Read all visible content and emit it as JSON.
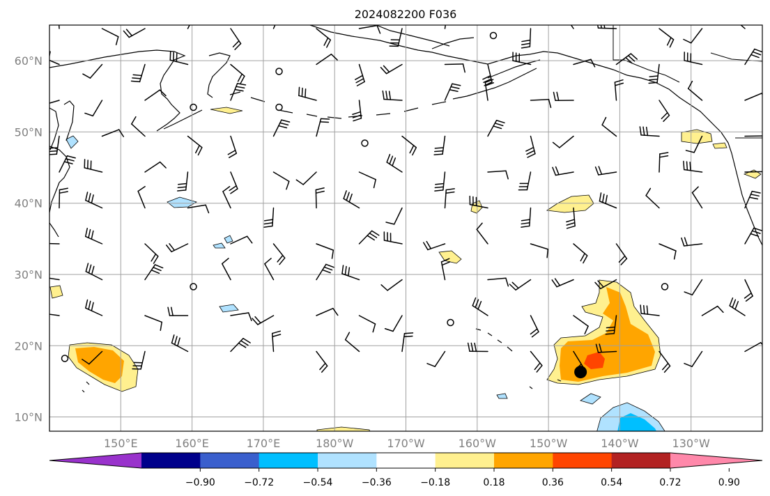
{
  "title": "2024082200 F036",
  "map": {
    "projection": "PlateCarree",
    "lon_range": [
      140,
      240
    ],
    "lat_range": [
      8,
      65
    ],
    "lat_ticks": [
      {
        "value": 10,
        "label": "10°N"
      },
      {
        "value": 20,
        "label": "20°N"
      },
      {
        "value": 30,
        "label": "30°N"
      },
      {
        "value": 40,
        "label": "40°N"
      },
      {
        "value": 50,
        "label": "50°N"
      },
      {
        "value": 60,
        "label": "60°N"
      }
    ],
    "lon_ticks": [
      {
        "value": 150,
        "label": "150°E"
      },
      {
        "value": 160,
        "label": "160°E"
      },
      {
        "value": 170,
        "label": "170°E"
      },
      {
        "value": 180,
        "label": "180°W"
      },
      {
        "value": 190,
        "label": "170°W"
      },
      {
        "value": 200,
        "label": "160°W"
      },
      {
        "value": 210,
        "label": "150°W"
      },
      {
        "value": 220,
        "label": "140°W"
      },
      {
        "value": 230,
        "label": "130°W"
      }
    ],
    "grid": true,
    "storm_marker": {
      "lon": 214.5,
      "lat": 16.3
    }
  },
  "colorbar": {
    "colors": [
      "#9932cc",
      "#00008b",
      "#3a5fcd",
      "#00bfff",
      "#b0e2ff",
      "#ffffff",
      "#fff08f",
      "#ffa500",
      "#ff4500",
      "#b22222",
      "#ff88aa"
    ],
    "boundaries": [
      -1.08,
      -0.9,
      -0.72,
      -0.54,
      -0.36,
      -0.18,
      0.18,
      0.36,
      0.54,
      0.72,
      0.9,
      1.08
    ],
    "tick_labels": [
      "−0.90",
      "−0.72",
      "−0.54",
      "−0.36",
      "−0.18",
      "0.18",
      "0.36",
      "0.54",
      "0.72",
      "0.90"
    ],
    "extend": "both"
  },
  "colors": {
    "pos1": "#fff08f",
    "pos2": "#ffa500",
    "pos3": "#ff4500",
    "neg1": "#b0e2ff",
    "neg2": "#00bfff"
  }
}
